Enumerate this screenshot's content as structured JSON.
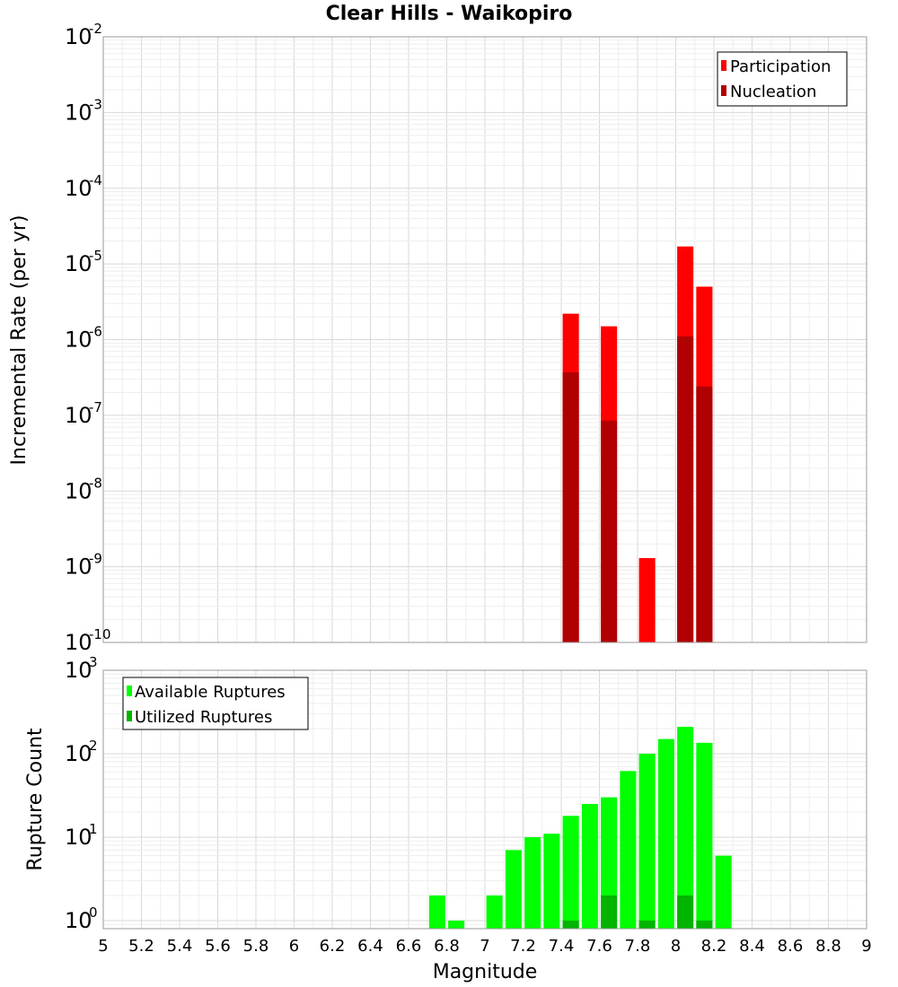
{
  "title": "Clear Hills - Waikopiro",
  "x_axis": {
    "label": "Magnitude",
    "range": [
      5,
      9
    ],
    "ticks": [
      "5",
      "5.2",
      "5.4",
      "5.6",
      "5.8",
      "6",
      "6.2",
      "6.4",
      "6.6",
      "6.8",
      "7",
      "7.2",
      "7.4",
      "7.6",
      "7.8",
      "8",
      "8.2",
      "8.4",
      "8.6",
      "8.8",
      "9"
    ]
  },
  "chart_data": [
    {
      "type": "bar",
      "title": "Clear Hills - Waikopiro",
      "xlabel": "Magnitude",
      "ylabel": "Incremental Rate (per yr)",
      "yscale": "log",
      "ylim": [
        1e-10,
        0.01
      ],
      "xlim": [
        5,
        9
      ],
      "y_tick_exponents": [
        -10,
        -9,
        -8,
        -7,
        -6,
        -5,
        -4,
        -3,
        -2
      ],
      "legend": {
        "position": "top-right",
        "entries": [
          "Participation",
          "Nucleation"
        ]
      },
      "grid": true,
      "series": [
        {
          "name": "Participation",
          "color": "#ff0000",
          "points": [
            {
              "x": 7.45,
              "y": 2.2e-06
            },
            {
              "x": 7.65,
              "y": 1.5e-06
            },
            {
              "x": 7.85,
              "y": 1.3e-09
            },
            {
              "x": 8.05,
              "y": 1.7e-05
            },
            {
              "x": 8.15,
              "y": 5e-06
            }
          ]
        },
        {
          "name": "Nucleation",
          "color": "#b00000",
          "points": [
            {
              "x": 7.45,
              "y": 3.7e-07
            },
            {
              "x": 7.65,
              "y": 8.5e-08
            },
            {
              "x": 8.05,
              "y": 1.1e-06
            },
            {
              "x": 8.15,
              "y": 2.4e-07
            }
          ]
        }
      ]
    },
    {
      "type": "bar",
      "xlabel": "Magnitude",
      "ylabel": "Rupture Count",
      "yscale": "log",
      "ylim": [
        0.8,
        1000
      ],
      "xlim": [
        5,
        9
      ],
      "y_tick_exponents": [
        0,
        1,
        2,
        3
      ],
      "legend": {
        "position": "top-left",
        "entries": [
          "Available Ruptures",
          "Utilized Ruptures"
        ]
      },
      "grid": true,
      "series": [
        {
          "name": "Available Ruptures",
          "color": "#00ff00",
          "points": [
            {
              "x": 6.75,
              "y": 2
            },
            {
              "x": 6.85,
              "y": 1
            },
            {
              "x": 7.05,
              "y": 2
            },
            {
              "x": 7.15,
              "y": 7
            },
            {
              "x": 7.25,
              "y": 10
            },
            {
              "x": 7.35,
              "y": 11
            },
            {
              "x": 7.45,
              "y": 18
            },
            {
              "x": 7.55,
              "y": 25
            },
            {
              "x": 7.65,
              "y": 30
            },
            {
              "x": 7.75,
              "y": 62
            },
            {
              "x": 7.85,
              "y": 100
            },
            {
              "x": 7.95,
              "y": 150
            },
            {
              "x": 8.05,
              "y": 210
            },
            {
              "x": 8.15,
              "y": 135
            },
            {
              "x": 8.25,
              "y": 6
            }
          ]
        },
        {
          "name": "Utilized Ruptures",
          "color": "#00b400",
          "points": [
            {
              "x": 7.45,
              "y": 1
            },
            {
              "x": 7.65,
              "y": 2
            },
            {
              "x": 7.85,
              "y": 1
            },
            {
              "x": 8.05,
              "y": 2
            },
            {
              "x": 8.15,
              "y": 1
            }
          ]
        }
      ]
    }
  ]
}
